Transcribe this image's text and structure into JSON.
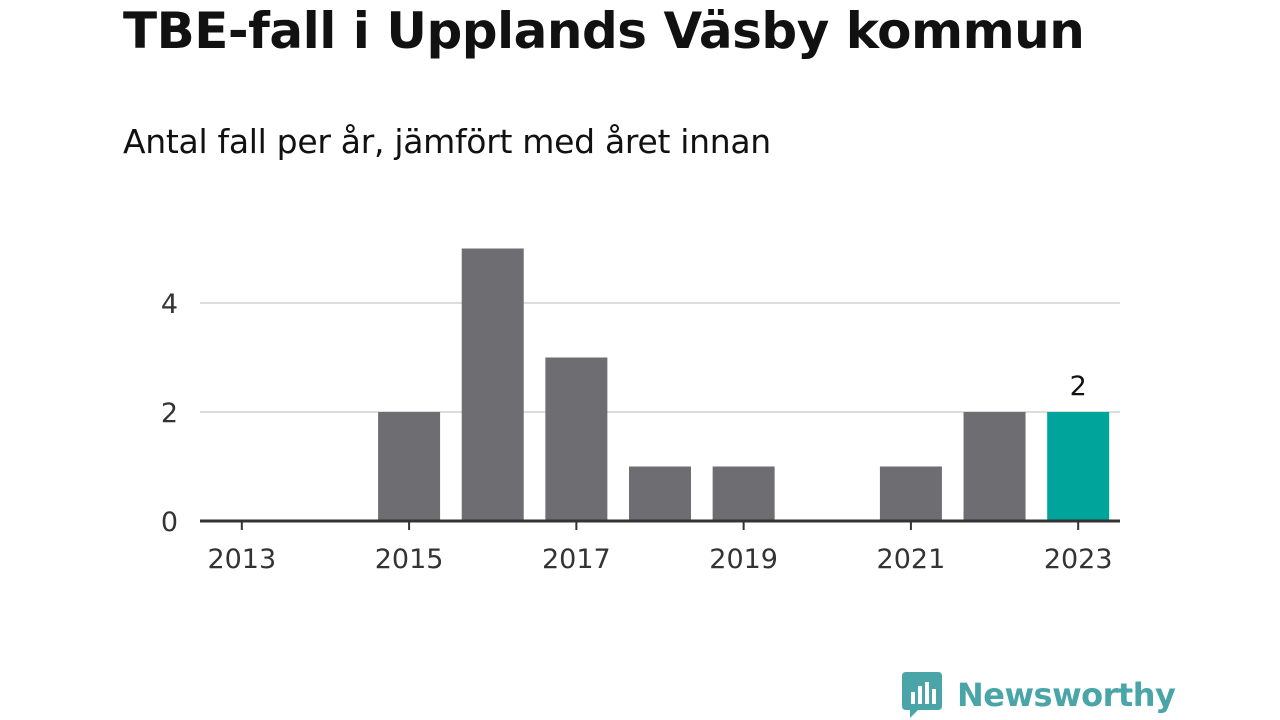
{
  "chart_data": {
    "type": "bar",
    "title": "TBE-fall i Upplands Väsby kommun",
    "subtitle": "Antal fall per år, jämfört med året innan",
    "categories": [
      2013,
      2014,
      2015,
      2016,
      2017,
      2018,
      2019,
      2020,
      2021,
      2022,
      2023
    ],
    "values": [
      0,
      0,
      2,
      5,
      3,
      1,
      1,
      0,
      1,
      2,
      2
    ],
    "x_tick_labels": [
      "2013",
      "2015",
      "2017",
      "2019",
      "2021",
      "2023"
    ],
    "y_ticks": [
      0,
      2,
      4
    ],
    "ylim": [
      0,
      5
    ],
    "grid": true,
    "highlight": {
      "category": 2023,
      "label": "2"
    },
    "colors": {
      "bar": "#6e6d72",
      "highlight": "#00a49a",
      "grid": "#dddddd",
      "axis": "#333333"
    }
  },
  "brand": {
    "name": "Newsworthy",
    "color": "#4aa5a8",
    "icon": "bar-chart-speech-bubble-icon"
  }
}
